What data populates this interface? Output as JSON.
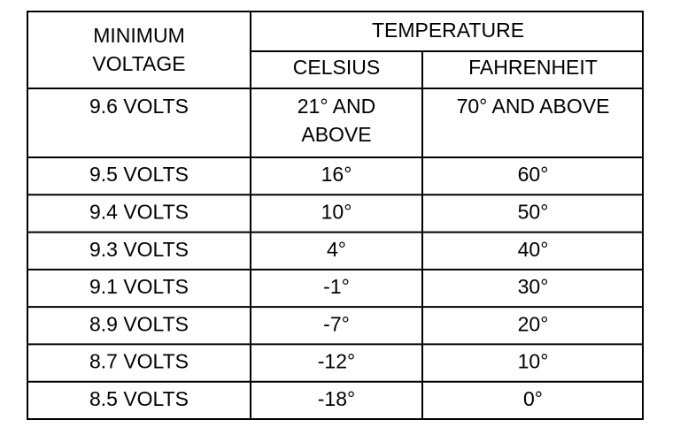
{
  "table": {
    "header": {
      "voltage": [
        "MINIMUM",
        "VOLTAGE"
      ],
      "temperature": "TEMPERATURE",
      "celsius": "CELSIUS",
      "fahrenheit": "FAHRENHEIT"
    },
    "rows": [
      [
        [
          "9.6 VOLTS"
        ],
        [
          "21° AND",
          "ABOVE"
        ],
        [
          "70° AND ABOVE"
        ]
      ],
      [
        [
          "9.5 VOLTS"
        ],
        [
          "16°"
        ],
        [
          "60°"
        ]
      ],
      [
        [
          "9.4 VOLTS"
        ],
        [
          "10°"
        ],
        [
          "50°"
        ]
      ],
      [
        [
          "9.3 VOLTS"
        ],
        [
          "4°"
        ],
        [
          "40°"
        ]
      ],
      [
        [
          "9.1 VOLTS"
        ],
        [
          "-1°"
        ],
        [
          "30°"
        ]
      ],
      [
        [
          "8.9 VOLTS"
        ],
        [
          "-7°"
        ],
        [
          "20°"
        ]
      ],
      [
        [
          "8.7 VOLTS"
        ],
        [
          "-12°"
        ],
        [
          "10°"
        ]
      ],
      [
        [
          "8.5 VOLTS"
        ],
        [
          "-18°"
        ],
        [
          "0°"
        ]
      ]
    ]
  }
}
